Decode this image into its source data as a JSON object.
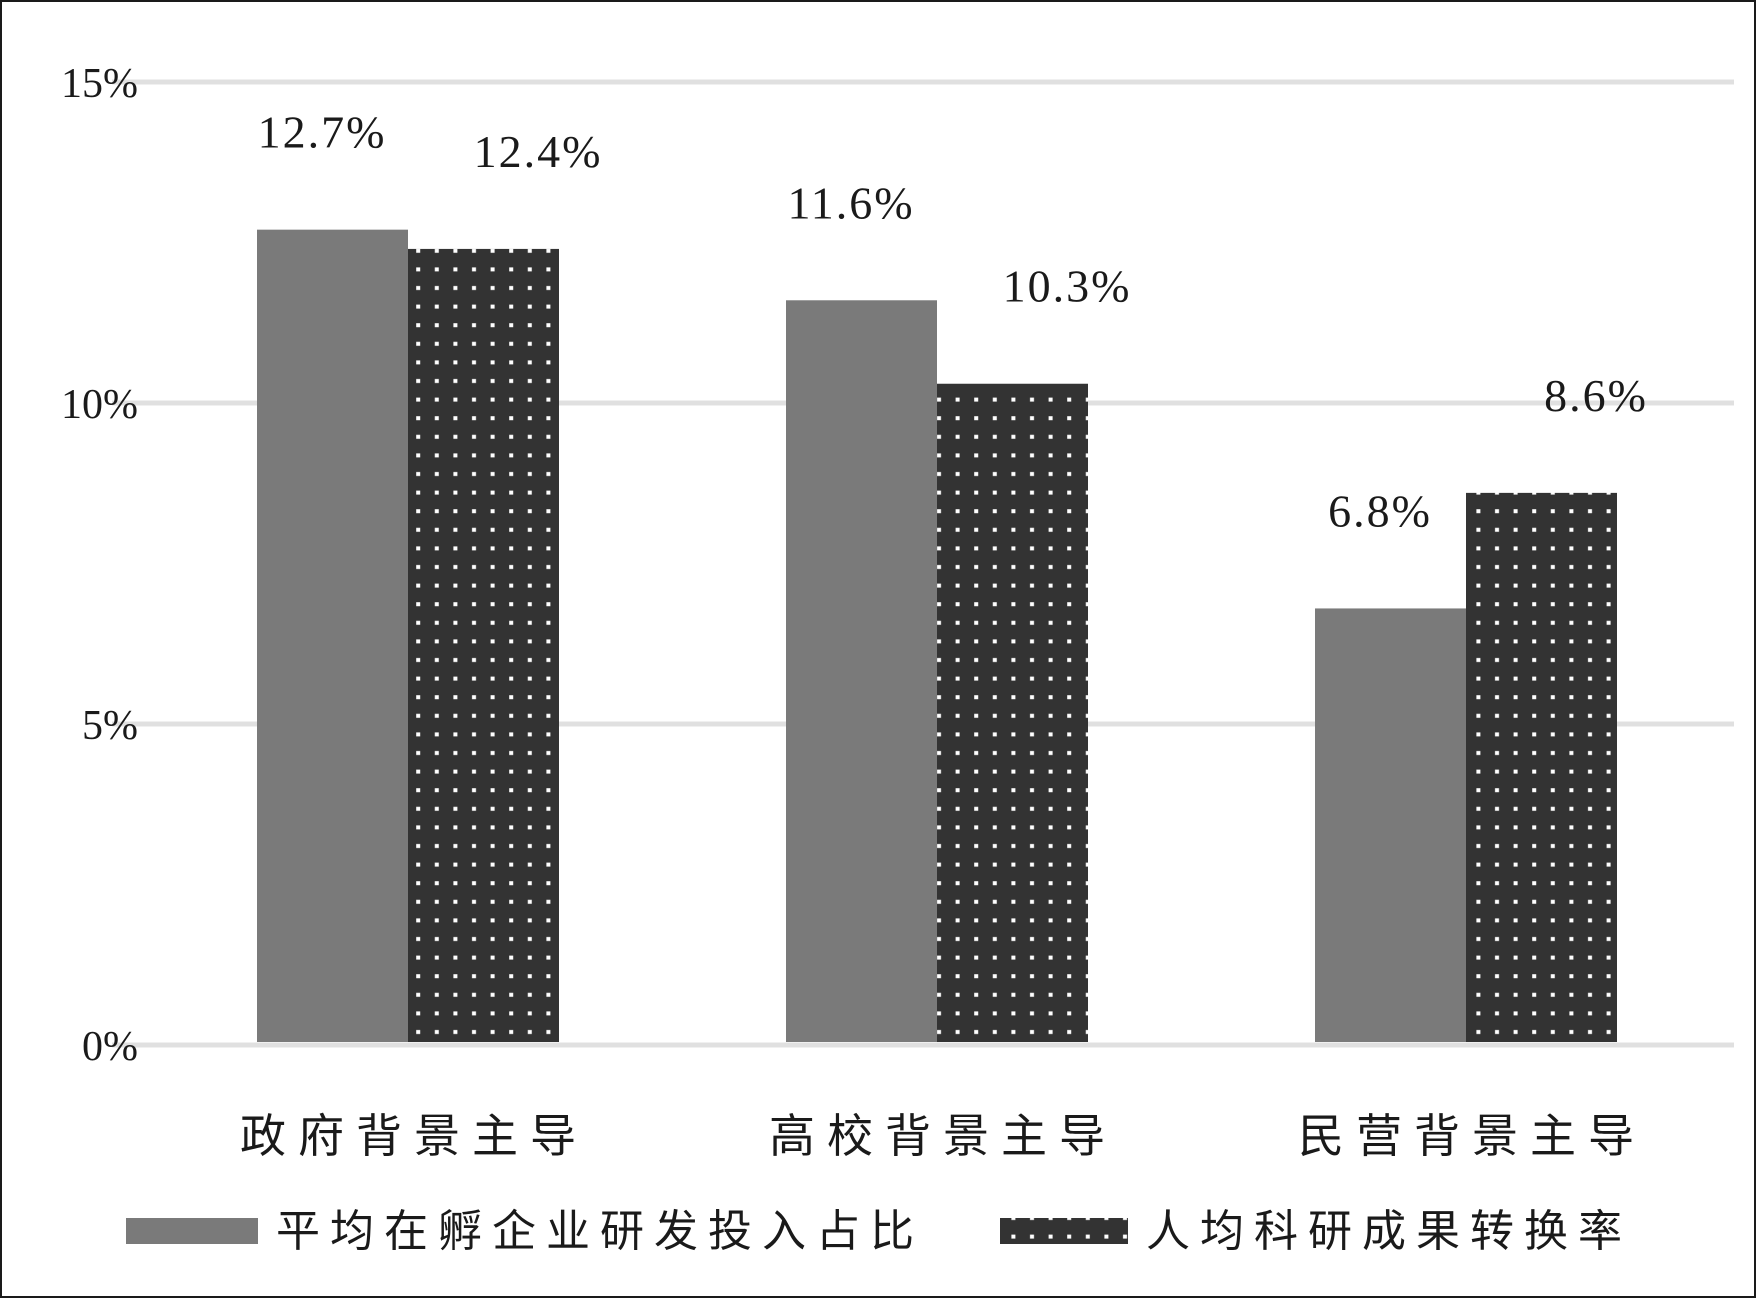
{
  "chart_data": {
    "type": "bar",
    "categories": [
      "政府背景主导",
      "高校背景主导",
      "民营背景主导"
    ],
    "series": [
      {
        "name": "平均在孵企业研发投入占比",
        "values": [
          12.7,
          11.6,
          6.8
        ],
        "labels": [
          "12.7%",
          "11.6%",
          "6.8%"
        ],
        "color": "#7a7a7a",
        "pattern": "solid"
      },
      {
        "name": "人均科研成果转换率",
        "values": [
          12.4,
          10.3,
          8.6
        ],
        "labels": [
          "12.4%",
          "10.3%",
          "8.6%"
        ],
        "color": "#333333",
        "pattern": "dotted"
      }
    ],
    "yticks": [
      {
        "value": 0,
        "label": "0%"
      },
      {
        "value": 5,
        "label": "5%"
      },
      {
        "value": 10,
        "label": "10%"
      },
      {
        "value": 15,
        "label": "15%"
      }
    ],
    "ylim": [
      0,
      15
    ],
    "grid": true,
    "gridColor": "#e0e0e0",
    "legend_position": "bottom"
  }
}
